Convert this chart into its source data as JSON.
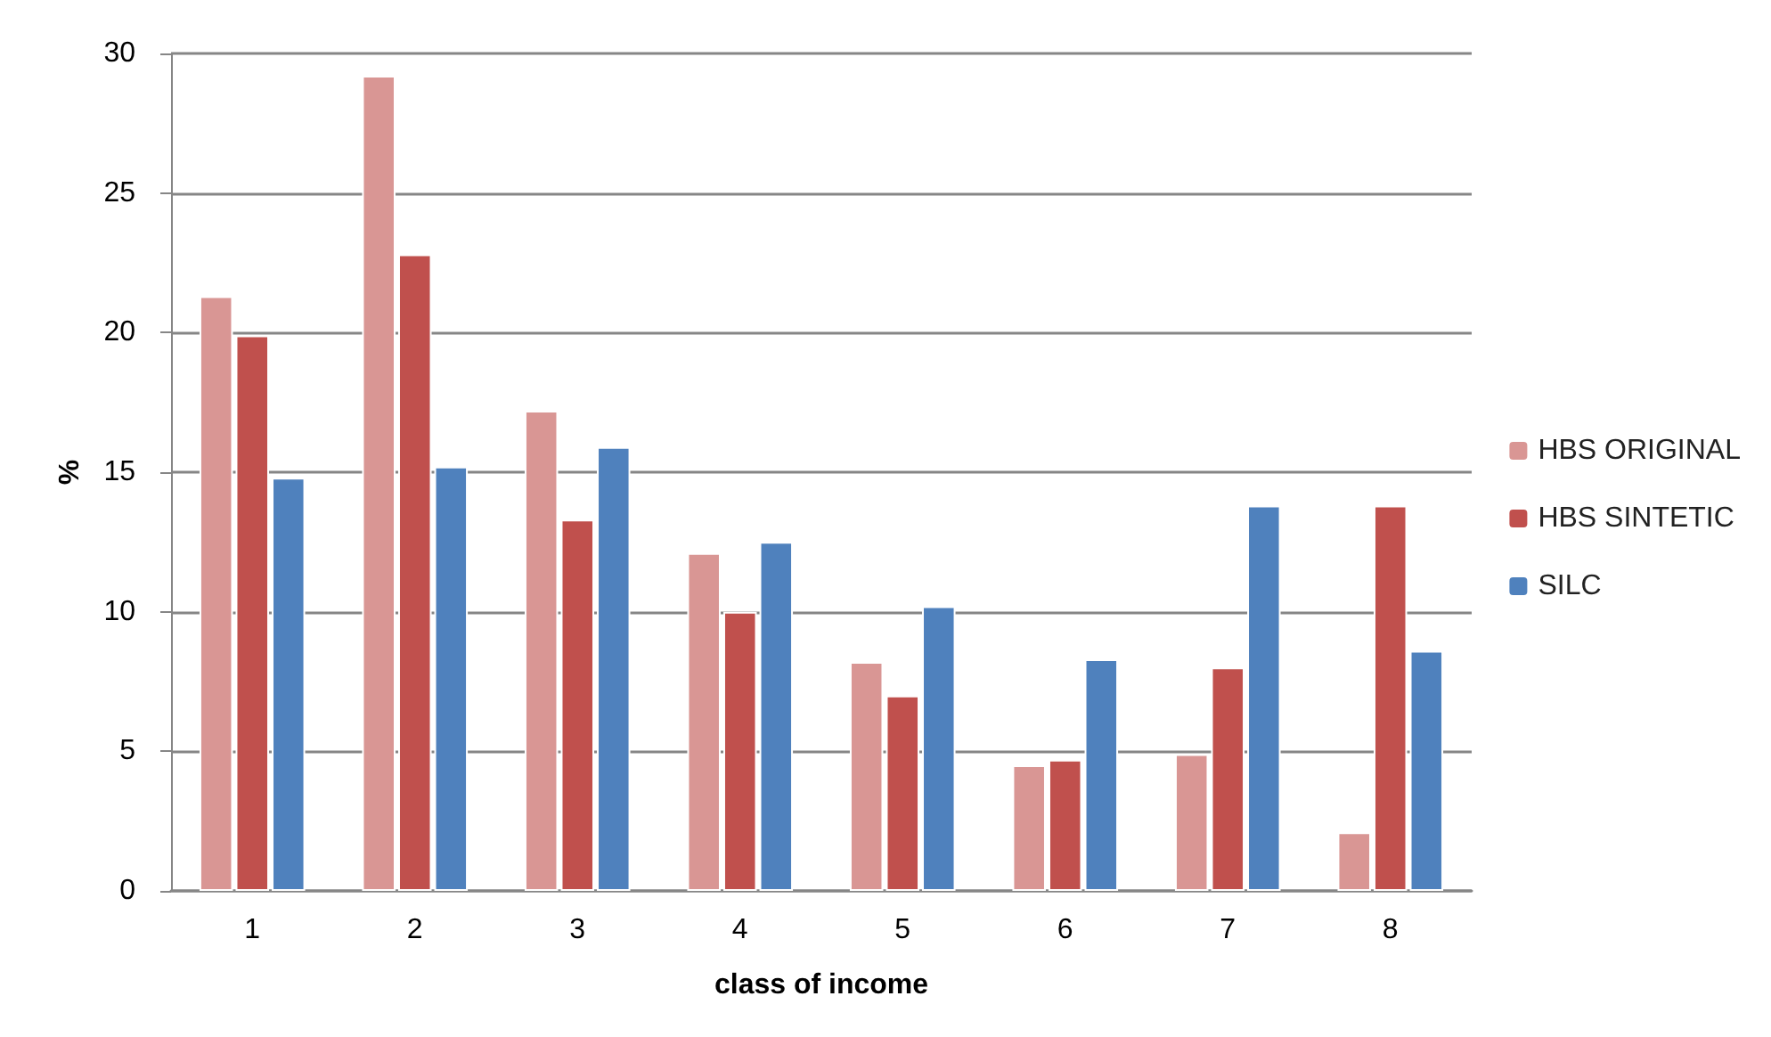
{
  "chart_data": {
    "type": "bar",
    "xlabel": "class of income",
    "ylabel": "%",
    "categories": [
      "1",
      "2",
      "3",
      "4",
      "5",
      "6",
      "7",
      "8"
    ],
    "series": [
      {
        "name": "HBS ORIGINAL",
        "color": "#d99694",
        "values": [
          21.3,
          29.2,
          17.2,
          12.1,
          8.2,
          4.5,
          4.9,
          2.1
        ]
      },
      {
        "name": "HBS SINTETIC",
        "color": "#c0504d",
        "values": [
          19.9,
          22.8,
          13.3,
          10.0,
          7.0,
          4.7,
          8.0,
          13.8
        ]
      },
      {
        "name": "SILC",
        "color": "#4f81bd",
        "values": [
          14.8,
          15.2,
          15.9,
          12.5,
          10.2,
          8.3,
          13.8,
          8.6
        ]
      }
    ],
    "ylim": [
      0,
      30
    ],
    "yticks": [
      0,
      5,
      10,
      15,
      20,
      25,
      30
    ],
    "grid": "y",
    "legend": "right"
  }
}
